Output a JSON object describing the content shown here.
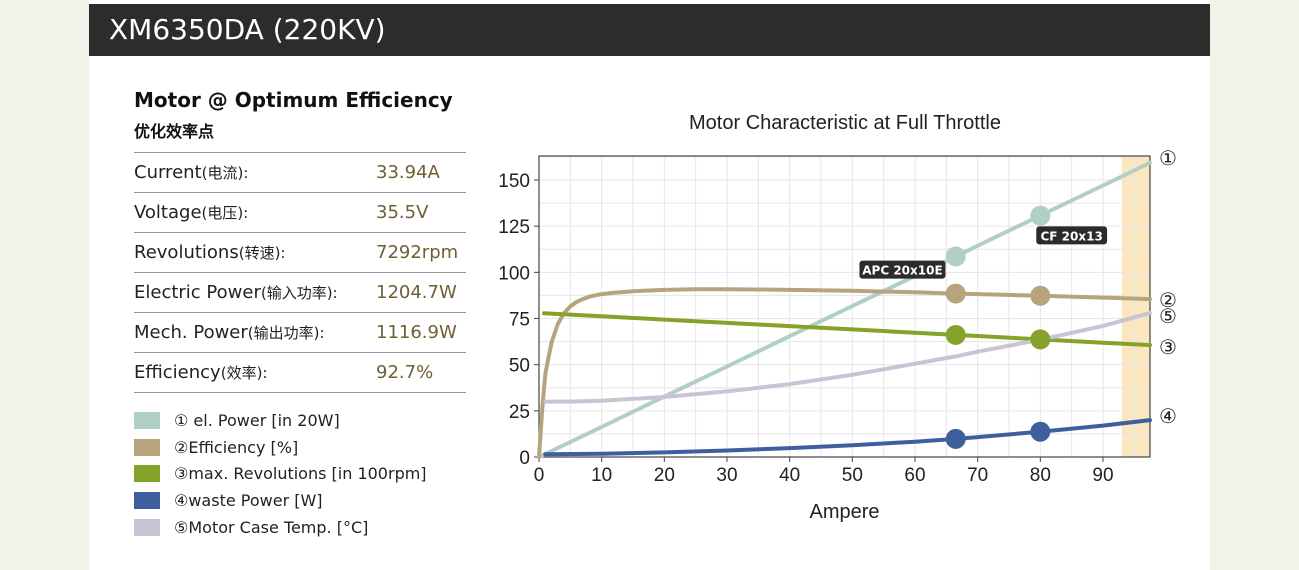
{
  "header": {
    "title": "XM6350DA (220KV)"
  },
  "left_panel": {
    "heading": "Motor @ Optimum Efficiency",
    "subheading": "优化效率点",
    "specs": [
      {
        "label": "Current",
        "label_cn": "(电流):",
        "value": "33.94A"
      },
      {
        "label": "Voltage",
        "label_cn": "(电压):",
        "value": "35.5V"
      },
      {
        "label": "Revolutions",
        "label_cn": "(转速):",
        "value": "7292rpm"
      },
      {
        "label": "Electric Power",
        "label_cn": "(输入功率):",
        "value": "1204.7W"
      },
      {
        "label": "Mech. Power",
        "label_cn": "(输出功率):",
        "value": "1116.9W"
      },
      {
        "label": "Efficiency",
        "label_cn": "(效率):",
        "value": "92.7%"
      }
    ]
  },
  "legend": [
    {
      "text": "① el. Power [in 20W]",
      "color": "#b2cfc6"
    },
    {
      "text": "②Efficiency [%]",
      "color": "#b7a47c"
    },
    {
      "text": "③max. Revolutions [in 100rpm]",
      "color": "#85a22a"
    },
    {
      "text": "④waste Power [W]",
      "color": "#3e5f9e"
    },
    {
      "text": "⑤Motor Case Temp. [°C]",
      "color": "#c7c5d4"
    }
  ],
  "chart_data": {
    "type": "line",
    "title": "Motor Characteristic at Full Throttle",
    "xlabel": "Ampere",
    "ylabel": "",
    "xlim": [
      0,
      97.5
    ],
    "ylim": [
      0,
      163
    ],
    "xticks": [
      0,
      10,
      20,
      30,
      40,
      50,
      60,
      70,
      80,
      90
    ],
    "yticks": [
      0,
      25,
      50,
      75,
      100,
      125,
      150
    ],
    "grid": true,
    "shaded_region": {
      "x": [
        93,
        97.5
      ],
      "color": "#fbe6c0"
    },
    "series": [
      {
        "name": "① el. Power [in 20W]",
        "end_label": "①",
        "color": "#b2cfc6",
        "x": [
          0,
          10,
          20,
          30,
          40,
          50,
          60,
          66.5,
          70,
          80,
          90,
          97.5
        ],
        "y": [
          0,
          16.3,
          32.7,
          49,
          65.4,
          81.7,
          98,
          108.6,
          114.4,
          130.7,
          147,
          159.3
        ],
        "markers": [
          {
            "x": 66.5,
            "y": 108.6
          },
          {
            "x": 80,
            "y": 130.7
          }
        ]
      },
      {
        "name": "②Efficiency [%]",
        "end_label": "②",
        "color": "#b7a47c",
        "x": [
          0,
          0.5,
          1,
          2,
          3,
          4,
          5,
          6,
          7,
          8,
          10,
          12,
          15,
          20,
          25,
          30,
          35,
          40,
          50,
          60,
          66.5,
          70,
          80,
          90,
          97.5
        ],
        "y": [
          0,
          25,
          45,
          62,
          72,
          78,
          81.5,
          84,
          85.5,
          86.8,
          88.2,
          89,
          89.8,
          90.5,
          90.8,
          90.8,
          90.7,
          90.5,
          90,
          89.2,
          88.5,
          88.2,
          87.3,
          86.3,
          85.5
        ],
        "markers": [
          {
            "x": 66.5,
            "y": 88.5
          },
          {
            "x": 80,
            "y": 87.3
          }
        ]
      },
      {
        "name": "③max. Revolutions [in 100rpm]",
        "end_label": "③",
        "color": "#85a22a",
        "x": [
          0.8,
          10,
          20,
          30,
          40,
          50,
          60,
          66.5,
          70,
          80,
          90,
          97.5
        ],
        "y": [
          77.8,
          76.2,
          74.4,
          72.6,
          70.9,
          69.1,
          67.3,
          66.1,
          65.5,
          63.7,
          61.9,
          60.6
        ],
        "markers": [
          {
            "x": 66.5,
            "y": 66.1
          },
          {
            "x": 80,
            "y": 63.7
          }
        ]
      },
      {
        "name": "④waste Power [W]",
        "end_label": "④",
        "color": "#3e5f9e",
        "x": [
          1,
          10,
          20,
          30,
          40,
          50,
          60,
          66.5,
          70,
          80,
          90,
          97.5
        ],
        "y": [
          1.5,
          1.8,
          2.5,
          3.5,
          4.8,
          6.4,
          8.3,
          9.8,
          10.8,
          13.7,
          17,
          20
        ],
        "markers": [
          {
            "x": 66.5,
            "y": 9.8
          },
          {
            "x": 80,
            "y": 13.7
          }
        ]
      },
      {
        "name": "⑤Motor Case Temp. [°C]",
        "end_label": "⑤",
        "color": "#c7c5d4",
        "x": [
          1,
          5,
          10,
          20,
          30,
          40,
          50,
          60,
          66.5,
          70,
          80,
          90,
          97.5
        ],
        "y": [
          30,
          30,
          30.5,
          32.5,
          35.5,
          39.5,
          44.5,
          50.5,
          54.5,
          57,
          63.5,
          71,
          78
        ],
        "markers": []
      }
    ],
    "annotations": [
      {
        "text": "APC 20x10E",
        "x": 58,
        "y": 101.5
      },
      {
        "text": "CF 20x13",
        "x": 85,
        "y": 120
      }
    ]
  }
}
